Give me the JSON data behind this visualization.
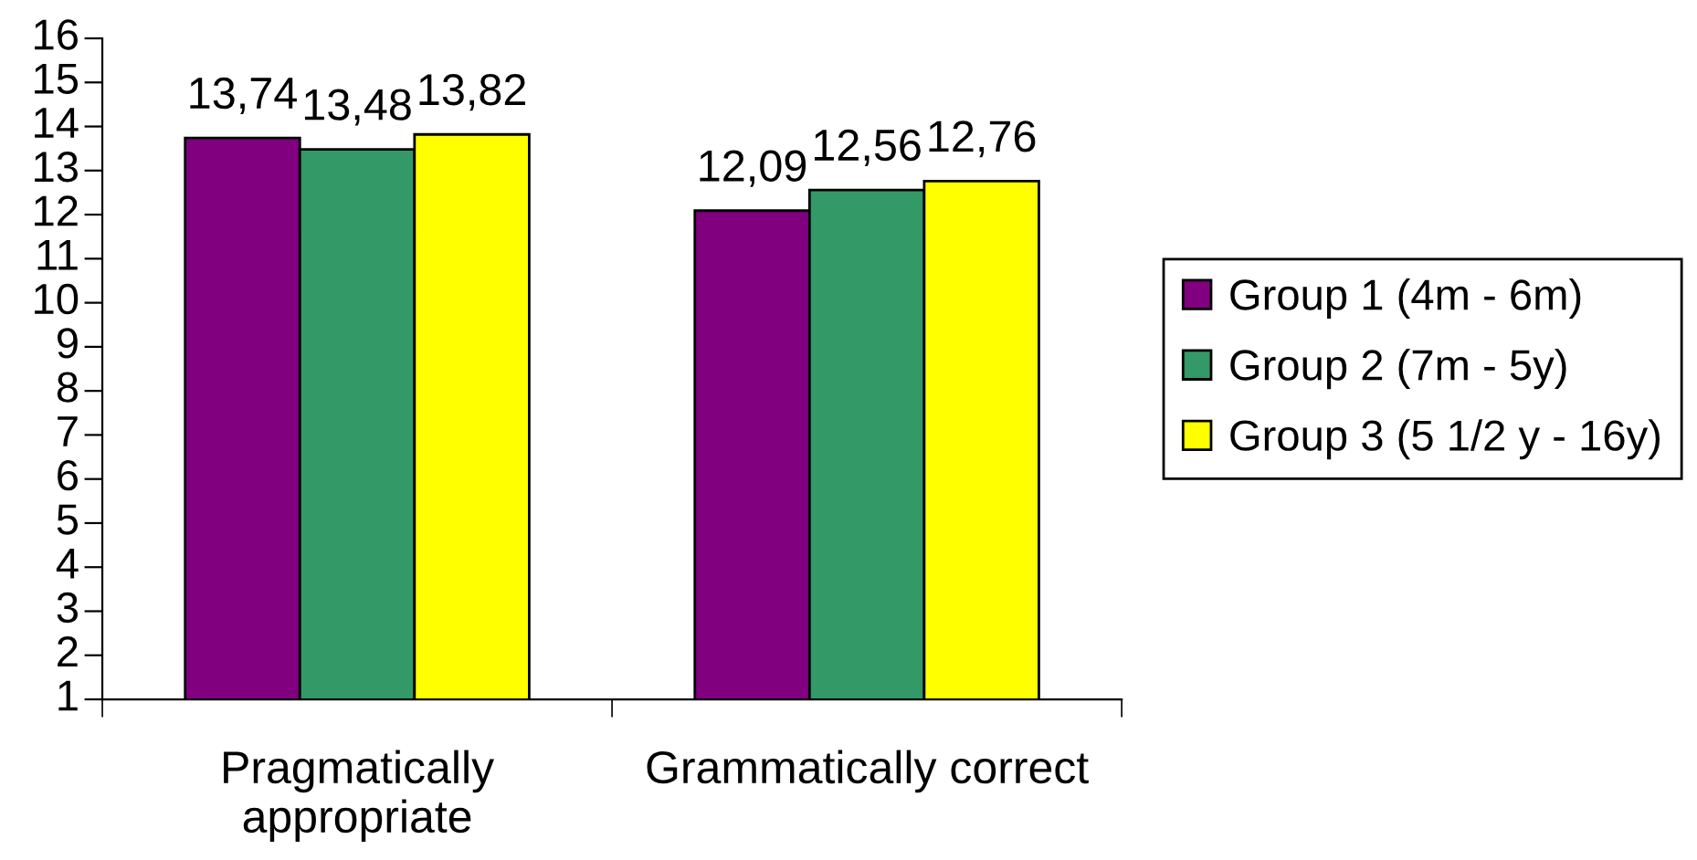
{
  "chart_data": {
    "type": "bar",
    "categories": [
      "Pragmatically\nappropriate",
      "Grammatically correct"
    ],
    "series": [
      {
        "name": "Group 1 (4m - 6m)",
        "color": "#800080",
        "values": [
          13.74,
          12.09
        ],
        "value_labels": [
          "13,74",
          "12,09"
        ]
      },
      {
        "name": "Group 2 (7m - 5y)",
        "color": "#339966",
        "values": [
          13.48,
          12.56
        ],
        "value_labels": [
          "13,48",
          "12,56"
        ]
      },
      {
        "name": "Group 3 (5 1/2 y - 16y)",
        "color": "#ffff00",
        "values": [
          13.82,
          12.76
        ],
        "value_labels": [
          "13,82",
          "12,76"
        ]
      }
    ],
    "ylim": [
      1,
      16
    ],
    "yticks": [
      1,
      2,
      3,
      4,
      5,
      6,
      7,
      8,
      9,
      10,
      11,
      12,
      13,
      14,
      15,
      16
    ],
    "grid": false,
    "legend": "right"
  }
}
